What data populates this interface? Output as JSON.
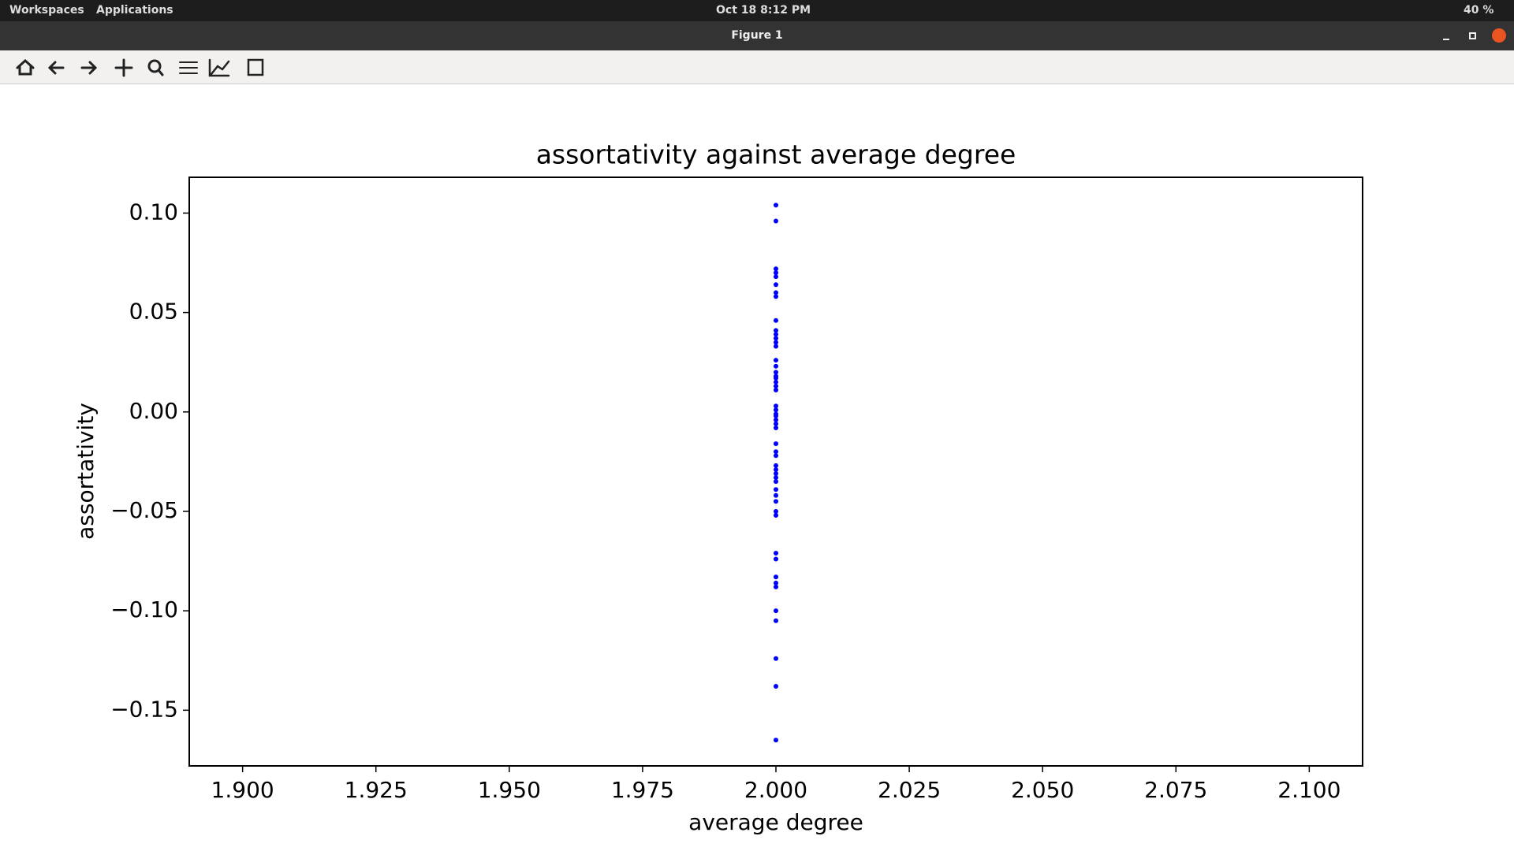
{
  "ui": {
    "workspaces": "Workspaces",
    "applications": "Applications",
    "clock": "Oct 18  8:12 PM",
    "battery": "40 %",
    "window_title": "Figure 1"
  },
  "chart_data": {
    "type": "scatter",
    "title": "assortativity against average degree",
    "x_label": "average degree",
    "y_label": "assortativity",
    "color": "#0000ff",
    "x": [
      2,
      2,
      2,
      2,
      2,
      2,
      2,
      2,
      2,
      2,
      2,
      2,
      2,
      2,
      2,
      2,
      2,
      2,
      2,
      2,
      2,
      2,
      2,
      2,
      2,
      2,
      2,
      2,
      2,
      2,
      2,
      2,
      2,
      2,
      2,
      2,
      2,
      2,
      2,
      2,
      2,
      2,
      2,
      2,
      2,
      2,
      2,
      2,
      2,
      2,
      2,
      2
    ],
    "values": [
      0.104,
      0.096,
      0.072,
      0.07,
      0.068,
      0.064,
      0.06,
      0.058,
      0.046,
      0.041,
      0.039,
      0.037,
      0.035,
      0.033,
      0.026,
      0.023,
      0.02,
      0.018,
      0.017,
      0.015,
      0.013,
      0.011,
      0.003,
      0.001,
      -0.001,
      -0.002,
      -0.004,
      -0.006,
      -0.008,
      -0.016,
      -0.02,
      -0.022,
      -0.027,
      -0.029,
      -0.031,
      -0.033,
      -0.035,
      -0.039,
      -0.042,
      -0.045,
      -0.05,
      -0.052,
      -0.071,
      -0.074,
      -0.083,
      -0.086,
      -0.088,
      -0.1,
      -0.105,
      -0.124,
      -0.138,
      -0.165
    ],
    "xlim": [
      1.89,
      2.11
    ],
    "ylim": [
      -0.178,
      0.118
    ],
    "xticks": [
      {
        "value": 1.9,
        "label": "1.900"
      },
      {
        "value": 1.925,
        "label": "1.925"
      },
      {
        "value": 1.95,
        "label": "1.950"
      },
      {
        "value": 1.975,
        "label": "1.975"
      },
      {
        "value": 2.0,
        "label": "2.000"
      },
      {
        "value": 2.025,
        "label": "2.025"
      },
      {
        "value": 2.05,
        "label": "2.050"
      },
      {
        "value": 2.075,
        "label": "2.075"
      },
      {
        "value": 2.1,
        "label": "2.100"
      }
    ],
    "yticks": [
      {
        "value": -0.15,
        "label": "−0.15"
      },
      {
        "value": -0.1,
        "label": "−0.10"
      },
      {
        "value": -0.05,
        "label": "−0.05"
      },
      {
        "value": 0,
        "label": "0.00"
      },
      {
        "value": 0.05,
        "label": "0.05"
      },
      {
        "value": 0.1,
        "label": "0.10"
      }
    ],
    "grid": false
  }
}
